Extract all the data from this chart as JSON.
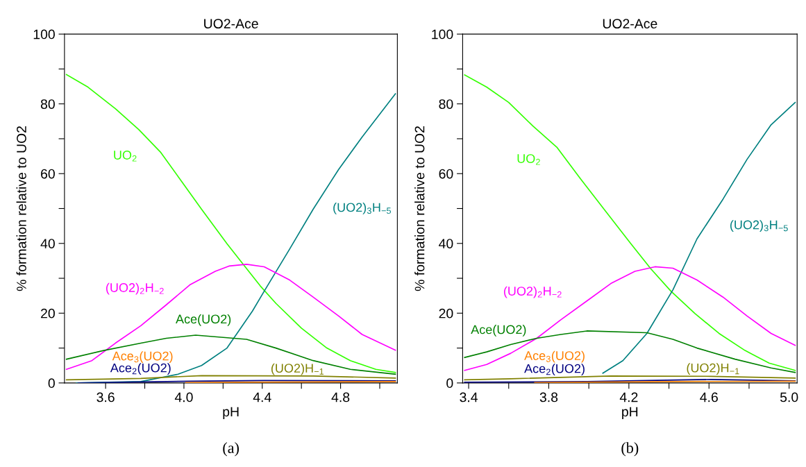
{
  "chart_data": [
    {
      "type": "line",
      "title": "UO2-Ace",
      "xlabel": "pH",
      "ylabel": "% formation relative to UO2",
      "annotations": [
        "(a)"
      ],
      "xlim": [
        3.39,
        5.09
      ],
      "ylim": [
        0,
        100
      ],
      "xticks": [
        {
          "value": 3.6,
          "label": "3.6"
        },
        {
          "value": 3.8,
          "label": null
        },
        {
          "value": 4.0,
          "label": "4.0"
        },
        {
          "value": 4.2,
          "label": null
        },
        {
          "value": 4.4,
          "label": "4.4"
        },
        {
          "value": 4.6,
          "label": null
        },
        {
          "value": 4.8,
          "label": "4.8"
        },
        {
          "value": 5.0,
          "label": null
        }
      ],
      "yticks": [
        0,
        {
          "value": 10,
          "label": null
        },
        20,
        {
          "value": 30,
          "label": null
        },
        40,
        {
          "value": 50,
          "label": null
        },
        60,
        {
          "value": 70,
          "label": null
        },
        80,
        {
          "value": 90,
          "label": null
        },
        100
      ],
      "grid": false,
      "legend": false,
      "series": [
        {
          "name": "UO$_{2}$",
          "color": "#33ff00",
          "x": [
            3.4,
            3.51,
            3.65,
            3.77,
            3.88,
            3.98,
            4.09,
            4.22,
            4.31,
            4.39,
            4.47,
            4.6,
            4.73,
            4.85,
            4.98,
            5.08
          ],
          "values": [
            88.4,
            84.8,
            78.6,
            72.6,
            66.2,
            58.4,
            49.8,
            39.9,
            33.5,
            27.8,
            22.8,
            15.7,
            10.0,
            6.4,
            3.9,
            3.0
          ]
        },
        {
          "name": "(UO2)$_{3}$H$_{−5}$",
          "color": "#008080",
          "x": [
            3.45,
            3.78,
            3.97,
            4.09,
            4.22,
            4.35,
            4.41,
            4.54,
            4.66,
            4.79,
            4.91,
            5.08
          ],
          "values": [
            0,
            0.4,
            2.5,
            5.0,
            10.0,
            20.6,
            26.3,
            38.4,
            49.8,
            61.2,
            70.5,
            82.9
          ]
        },
        {
          "name": "(UO2)$_{2}$H$_{−2}$",
          "color": "#ff00ff",
          "x": [
            3.4,
            3.53,
            3.65,
            3.78,
            3.91,
            4.03,
            4.16,
            4.23,
            4.32,
            4.41,
            4.54,
            4.66,
            4.79,
            4.91,
            5.08
          ],
          "values": [
            3.9,
            6.4,
            11.4,
            16.4,
            22.4,
            28.1,
            32.0,
            33.5,
            34.0,
            33.3,
            29.5,
            24.6,
            19.2,
            13.9,
            9.4
          ]
        },
        {
          "name": "Ace(UO2)",
          "color": "#008000",
          "x": [
            3.4,
            3.59,
            3.78,
            3.91,
            4.06,
            4.32,
            4.47,
            4.66,
            4.85,
            5.08
          ],
          "values": [
            6.8,
            9.3,
            11.4,
            12.8,
            13.7,
            12.5,
            10.0,
            6.4,
            3.9,
            2.5
          ]
        },
        {
          "name": "(UO2)H$_{−1}$",
          "color": "#808000",
          "x": [
            3.4,
            3.78,
            4.09,
            4.66,
            5.08
          ],
          "values": [
            0.9,
            1.3,
            2.1,
            2.0,
            1.4
          ]
        },
        {
          "name": "Ace$_{2}$(UO2)",
          "color": "#000080",
          "x": [
            3.46,
            4.03,
            4.41,
            5.08
          ],
          "values": [
            0,
            0.5,
            0.7,
            0.6
          ]
        },
        {
          "name": "Ace$_{3}$(UO2)",
          "color": "#ff8000",
          "x": [
            4.01,
            4.28,
            5.08
          ],
          "values": [
            0.1,
            0.2,
            0.4
          ]
        }
      ]
    },
    {
      "type": "line",
      "title": "UO2-Ace",
      "xlabel": "pH",
      "ylabel": "% formation relative to UO2",
      "annotations": [
        "(b)"
      ],
      "xlim": [
        3.37,
        5.04
      ],
      "ylim": [
        0,
        100
      ],
      "xticks": [
        {
          "value": 3.4,
          "label": "3.4"
        },
        {
          "value": 3.6,
          "label": null
        },
        {
          "value": 3.8,
          "label": "3.8"
        },
        {
          "value": 4.0,
          "label": null
        },
        {
          "value": 4.2,
          "label": "4.2"
        },
        {
          "value": 4.4,
          "label": null
        },
        {
          "value": 4.6,
          "label": "4.6"
        },
        {
          "value": 4.8,
          "label": null
        },
        {
          "value": 5.0,
          "label": "5.0"
        }
      ],
      "yticks": [
        0,
        {
          "value": 10,
          "label": null
        },
        20,
        {
          "value": 30,
          "label": null
        },
        40,
        {
          "value": 50,
          "label": null
        },
        60,
        {
          "value": 70,
          "label": null
        },
        80,
        {
          "value": 90,
          "label": null
        },
        100
      ],
      "grid": false,
      "legend": false,
      "series": [
        {
          "name": "UO$_{2}$",
          "color": "#33ff00",
          "x": [
            3.38,
            3.49,
            3.6,
            3.72,
            3.84,
            3.96,
            4.08,
            4.21,
            4.31,
            4.41,
            4.53,
            4.65,
            4.78,
            4.9,
            5.03
          ],
          "values": [
            88.3,
            84.8,
            80.4,
            73.7,
            67.6,
            58.4,
            49.5,
            39.9,
            32.7,
            26.3,
            19.9,
            14.2,
            9.3,
            5.7,
            3.6
          ]
        },
        {
          "name": "(UO2)$_{3}$H$_{−5}$",
          "color": "#008080",
          "x": [
            4.07,
            4.17,
            4.29,
            4.42,
            4.54,
            4.67,
            4.79,
            4.91,
            5.03
          ],
          "values": [
            2.8,
            6.4,
            14.2,
            26.7,
            41.3,
            52.7,
            64.1,
            74.0,
            80.4
          ]
        },
        {
          "name": "(UO2)$_{2}$H$_{−2}$",
          "color": "#ff00ff",
          "x": [
            3.38,
            3.49,
            3.61,
            3.74,
            3.86,
            3.99,
            4.11,
            4.23,
            4.33,
            4.42,
            4.54,
            4.67,
            4.79,
            4.91,
            5.03
          ],
          "values": [
            3.6,
            5.3,
            8.5,
            12.8,
            18.1,
            23.5,
            28.5,
            32.0,
            33.3,
            32.9,
            29.5,
            24.6,
            19.2,
            14.2,
            10.8
          ]
        },
        {
          "name": "Ace(UO2)",
          "color": "#008000",
          "x": [
            3.38,
            3.49,
            3.61,
            3.74,
            3.86,
            3.99,
            4.29,
            4.42,
            4.54,
            4.73,
            4.91,
            5.03
          ],
          "values": [
            7.3,
            8.9,
            11.0,
            12.8,
            13.9,
            14.9,
            14.4,
            12.5,
            10.0,
            6.8,
            4.3,
            3.0
          ]
        },
        {
          "name": "(UO2)H$_{−1}$",
          "color": "#808000",
          "x": [
            3.38,
            3.61,
            4.11,
            4.61,
            5.03
          ],
          "values": [
            0.9,
            1.2,
            2.0,
            1.9,
            1.4
          ]
        },
        {
          "name": "Ace$_{2}$(UO2)",
          "color": "#000080",
          "x": [
            3.38,
            3.99,
            4.61,
            5.03
          ],
          "values": [
            0.2,
            0.4,
            1.0,
            0.6
          ]
        },
        {
          "name": "Ace$_{3}$(UO2)",
          "color": "#ff8000",
          "x": [
            3.73,
            4.41,
            5.03
          ],
          "values": [
            0.1,
            0.4,
            0.5
          ]
        }
      ]
    }
  ]
}
